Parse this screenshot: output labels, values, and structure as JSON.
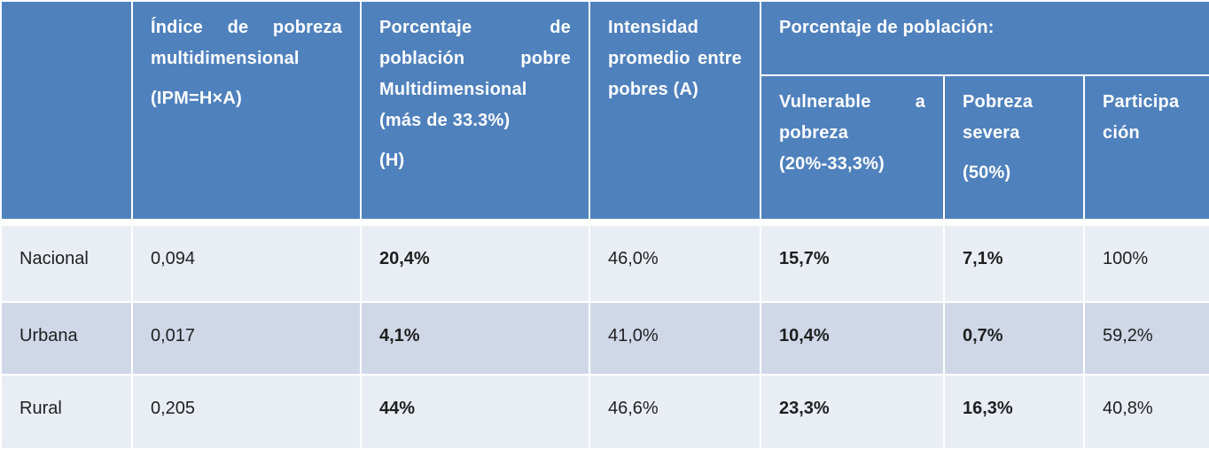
{
  "table": {
    "headers": {
      "region": "",
      "ipm": [
        "Índice de pobreza multidimensional",
        "(IPM=H×A)"
      ],
      "h": [
        "Porcentaje de población pobre Multidimensional (más de 33.3%)",
        "(H)"
      ],
      "a": "Intensidad promedio entre pobres (A)",
      "group": "Porcentaje de población:",
      "vulnerable": "Vulnerable a pobreza (20%-33,3%)",
      "severa": [
        "Pobreza severa",
        "(50%)"
      ],
      "participacion": [
        "Participa",
        "ción"
      ]
    },
    "rows": [
      {
        "region": "Nacional",
        "ipm": "0,094",
        "h": "20,4%",
        "a": "46,0%",
        "vulnerable": "15,7%",
        "severa": "7,1%",
        "participacion": "100%"
      },
      {
        "region": "Urbana",
        "ipm": "0,017",
        "h": "4,1%",
        "a": "41,0%",
        "vulnerable": "10,4%",
        "severa": "0,7%",
        "participacion": "59,2%"
      },
      {
        "region": "Rural",
        "ipm": "0,205",
        "h": "44%",
        "a": "46,6%",
        "vulnerable": "23,3%",
        "severa": "16,3%",
        "participacion": "40,8%"
      }
    ]
  }
}
